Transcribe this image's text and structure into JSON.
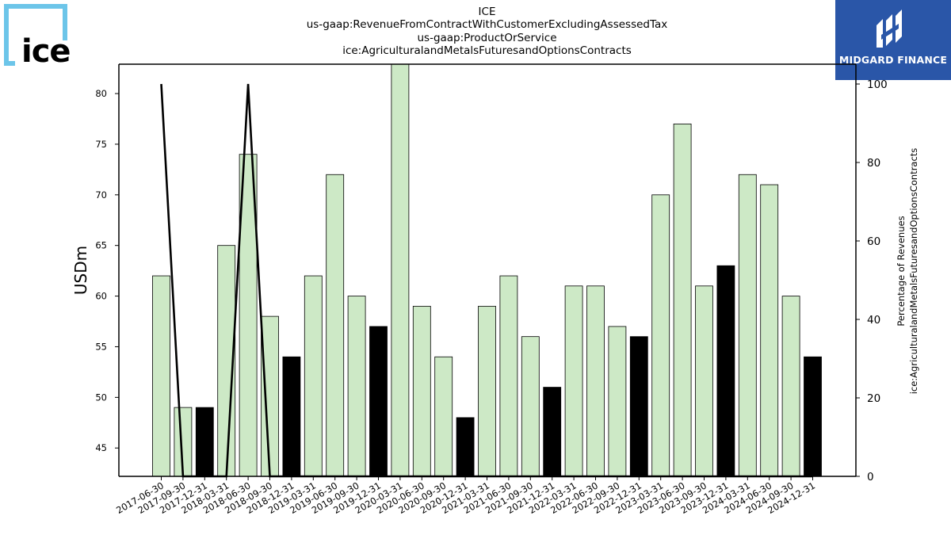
{
  "header": {
    "title_lines": [
      "ICE",
      "us-gaap:RevenueFromContractWithCustomerExcludingAssessedTax",
      "us-gaap:ProductOrService",
      "ice:AgriculturalandMetalsFuturesandOptionsContracts"
    ]
  },
  "logos": {
    "left_text": "ice",
    "right_text": "MIDGARD FINANCE",
    "left_color": "#6cc5e9",
    "right_bg": "#2a56a8"
  },
  "chart_data": {
    "type": "bar",
    "categories": [
      "2017-06-30",
      "2017-09-30",
      "2017-12-31",
      "2018-03-31",
      "2018-06-30",
      "2018-09-30",
      "2018-12-31",
      "2019-03-31",
      "2019-06-30",
      "2019-09-30",
      "2019-12-31",
      "2020-03-31",
      "2020-06-30",
      "2020-09-30",
      "2020-12-31",
      "2021-03-31",
      "2021-06-30",
      "2021-09-30",
      "2021-12-31",
      "2022-03-31",
      "2022-06-30",
      "2022-09-30",
      "2022-12-31",
      "2023-03-31",
      "2023-06-30",
      "2023-09-30",
      "2023-12-31",
      "2024-03-31",
      "2024-06-30",
      "2024-09-30",
      "2024-12-31"
    ],
    "values": [
      62,
      49,
      49,
      65,
      74,
      58,
      54,
      62,
      72,
      60,
      57,
      83,
      59,
      54,
      48,
      59,
      62,
      56,
      51,
      61,
      61,
      57,
      56,
      70,
      77,
      61,
      63,
      72,
      71,
      60,
      54
    ],
    "bar_highlight": [
      false,
      false,
      true,
      false,
      false,
      false,
      true,
      false,
      false,
      false,
      true,
      false,
      false,
      false,
      true,
      false,
      false,
      false,
      true,
      false,
      false,
      false,
      true,
      false,
      false,
      false,
      true,
      false,
      false,
      false,
      true
    ],
    "line_series": {
      "values": [
        100,
        0,
        0,
        0,
        100,
        0,
        0,
        0,
        0,
        0,
        0,
        0,
        0,
        0,
        0,
        0,
        0,
        0,
        0,
        0,
        0,
        0,
        0,
        0,
        0,
        0,
        0,
        0,
        0,
        0,
        0
      ]
    },
    "ylabel": "USDm",
    "y2label_lines": [
      "Percentage of Revenues",
      "ice:AgriculturalandMetalsFuturesandOptionsContracts"
    ],
    "ylim": [
      42.2,
      82.9
    ],
    "y2lim": [
      0,
      100
    ],
    "yticks": [
      45,
      50,
      55,
      60,
      65,
      70,
      75,
      80
    ],
    "y2ticks": [
      0,
      20,
      40,
      60,
      80,
      100
    ],
    "colors": {
      "bar": "#cde9c6",
      "bar_highlight": "#000000",
      "line": "#000000"
    },
    "grid": false
  }
}
